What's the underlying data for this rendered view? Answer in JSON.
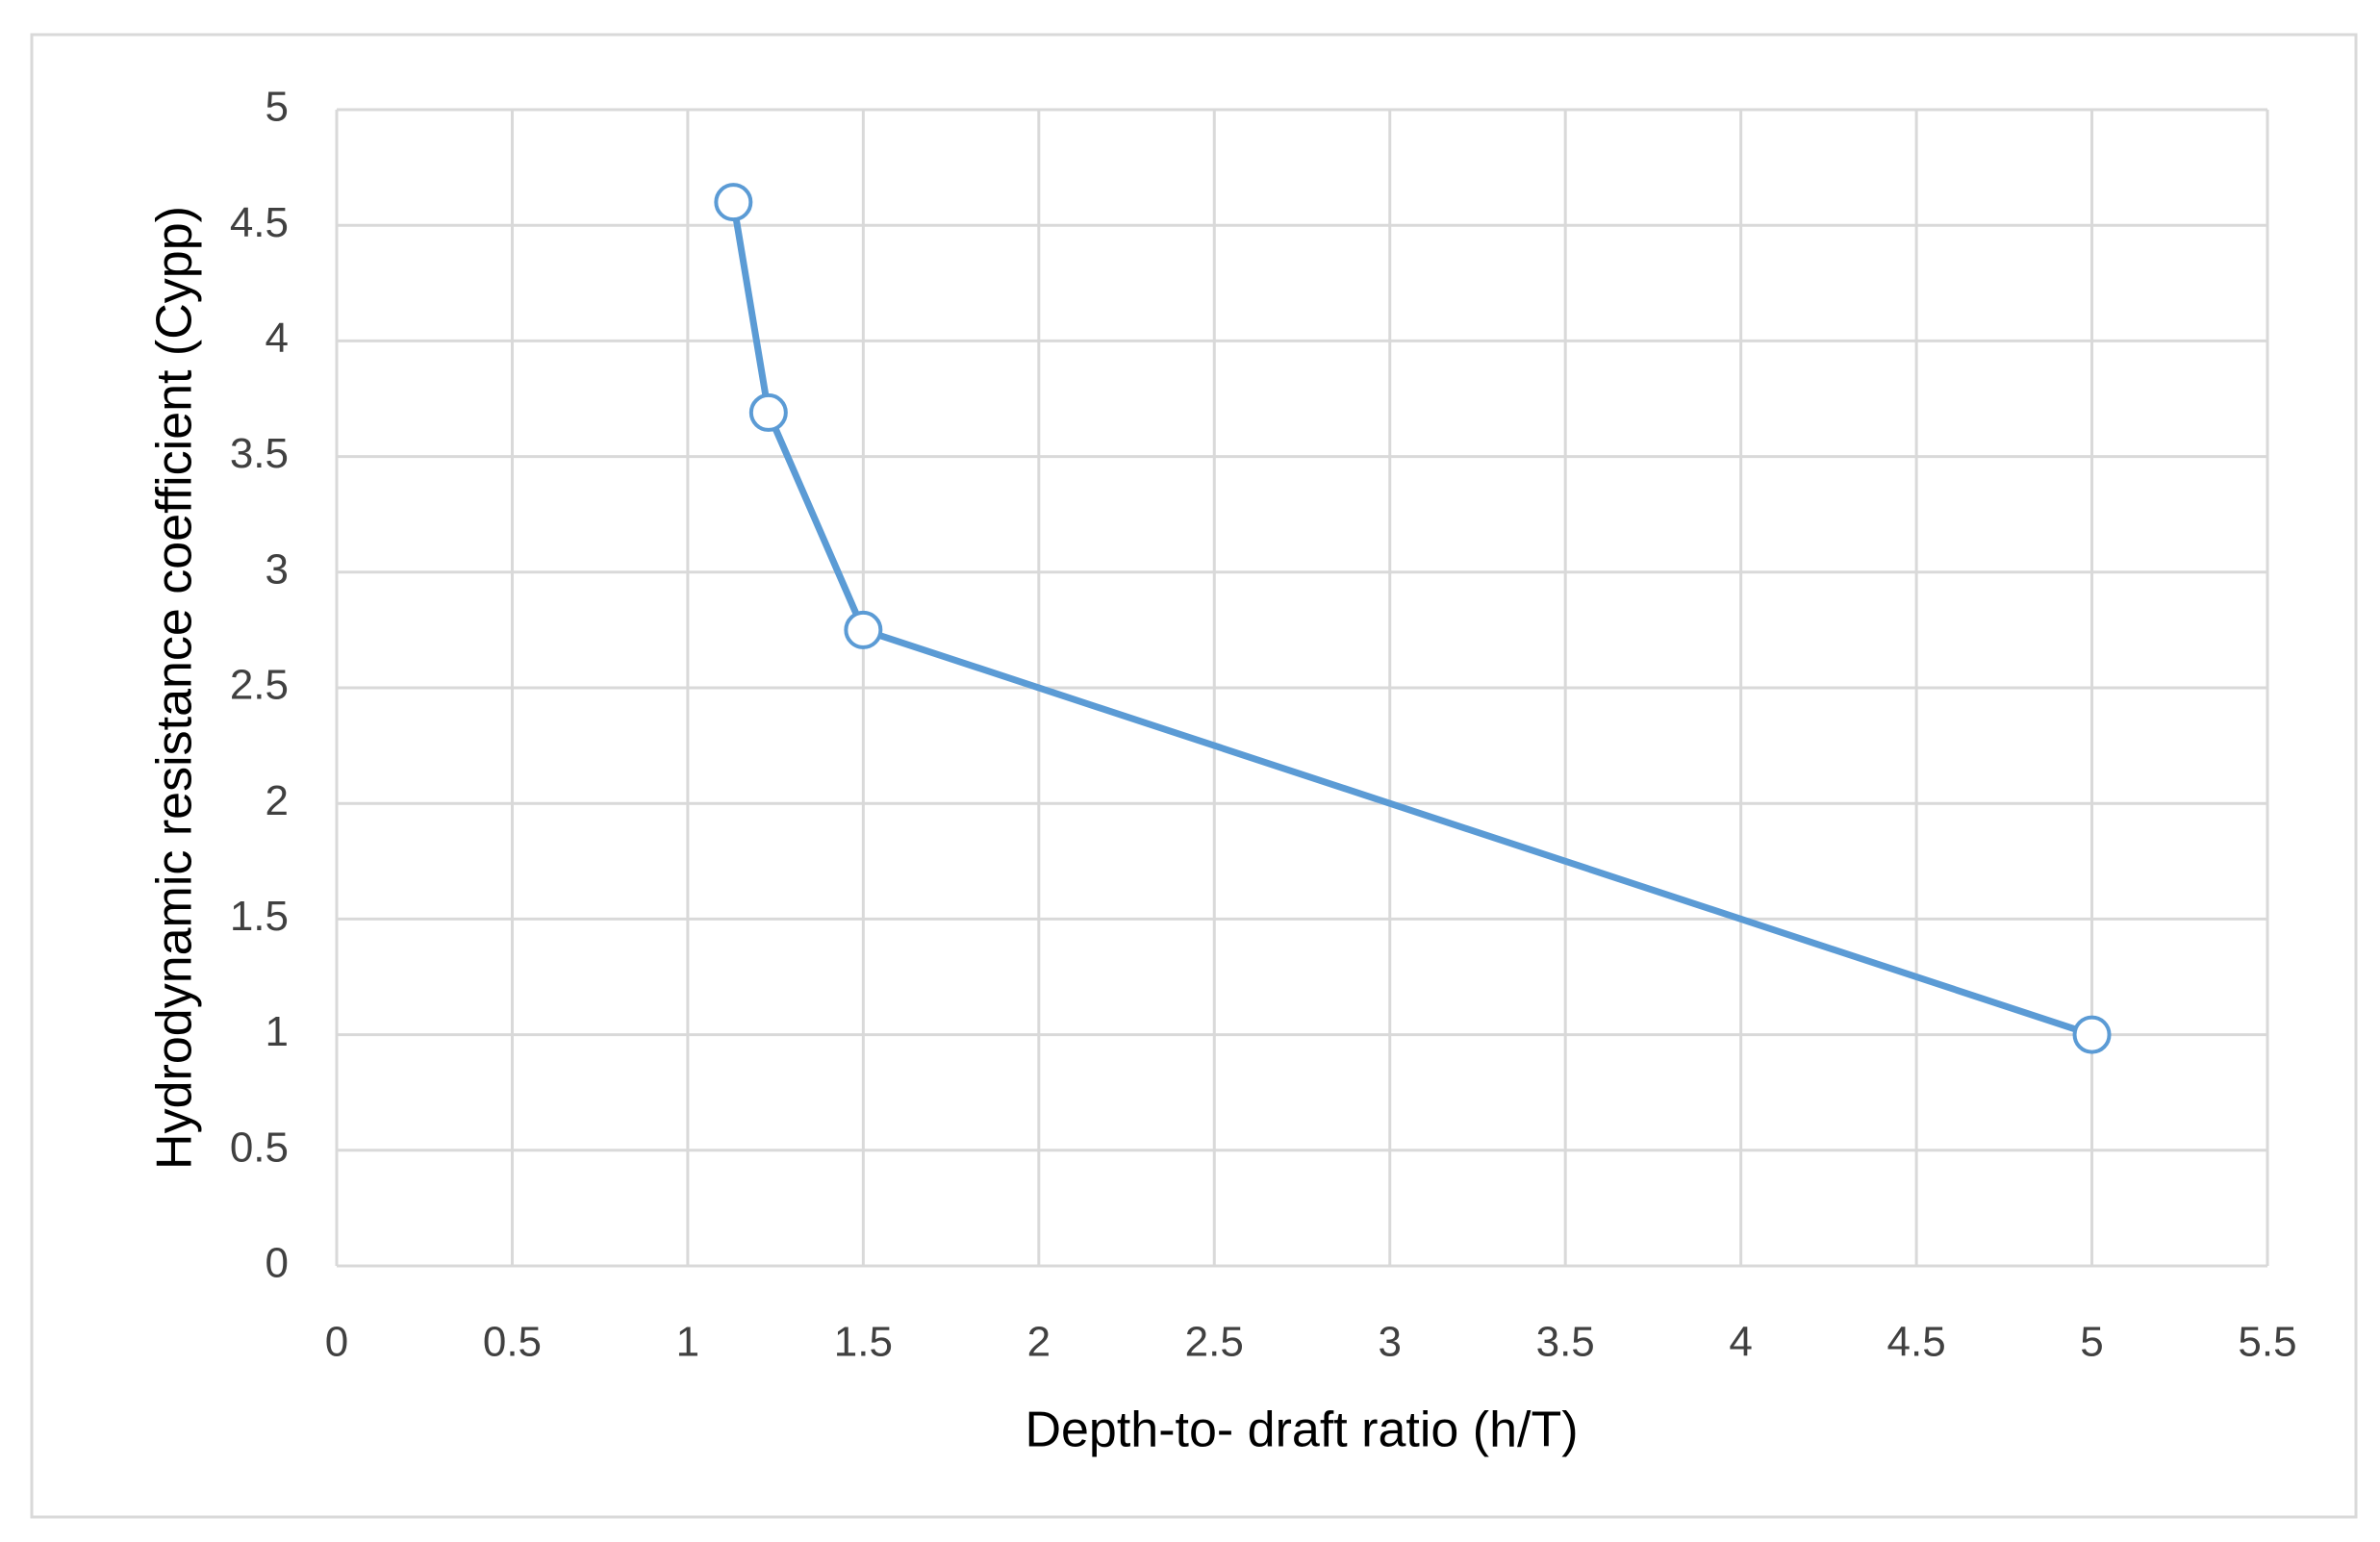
{
  "chart_data": {
    "type": "line",
    "xlabel": "Depth-to- draft ratio (h/T)",
    "ylabel": "Hydrodynamic resistance coefficient  (Cypp)",
    "x": [
      1.13,
      1.23,
      1.5,
      5
    ],
    "values": [
      4.6,
      3.69,
      2.75,
      1.0
    ],
    "color": "#5b9bd5",
    "xlim": [
      0,
      5.5
    ],
    "xticks": [
      0,
      0.5,
      1,
      1.5,
      2,
      2.5,
      3,
      3.5,
      4,
      4.5,
      5,
      5.5
    ],
    "ylim": [
      0,
      5
    ],
    "yticks": [
      0,
      0.5,
      1,
      1.5,
      2,
      2.5,
      3,
      3.5,
      4,
      4.5,
      5
    ],
    "grid": true,
    "markers": true
  }
}
